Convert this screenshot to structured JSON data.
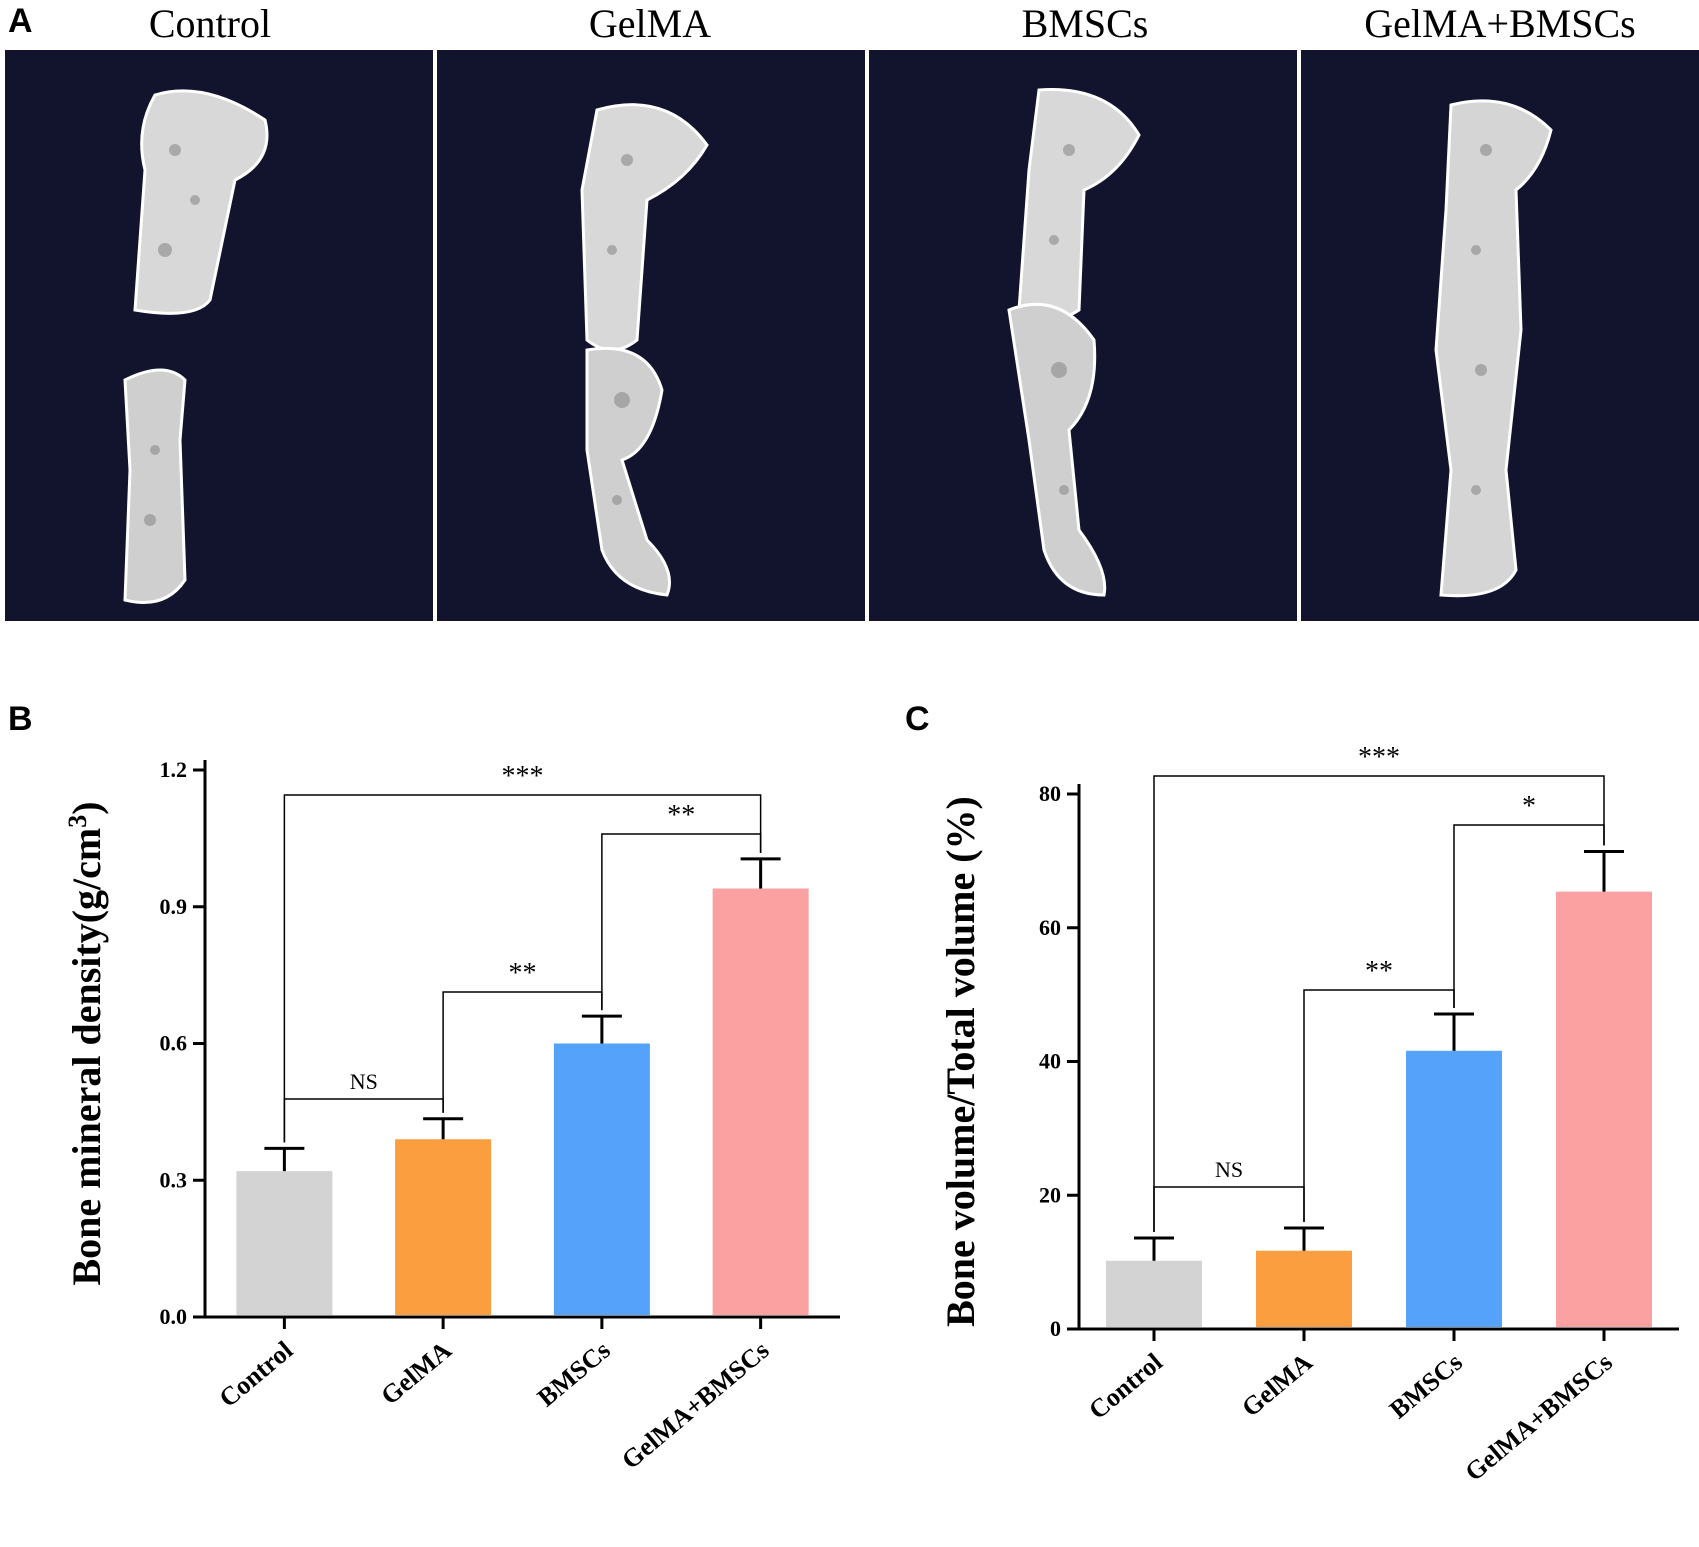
{
  "figure": {
    "panel_a": {
      "letter": "A",
      "columns": [
        "Control",
        "GelMA",
        "BMSCs",
        "GelMA+BMSCs"
      ]
    },
    "panel_b": {
      "letter": "B"
    },
    "panel_c": {
      "letter": "C"
    }
  },
  "colors": {
    "background_panel": "#12142e",
    "bone": "#e6e6e6",
    "control": "#d3d3d3",
    "gelma": "#fa9e3f",
    "bmscs": "#55a2fa",
    "gelma_bmscs": "#fca1a1"
  },
  "chart_data": [
    {
      "type": "bar",
      "title": "",
      "xlabel": "",
      "ylabel": "Bone mineral density(g/cm3)",
      "ylabel_main": "Bone mineral density(g/cm",
      "ylabel_sup": "3",
      "ylabel_end": ")",
      "categories": [
        "Control",
        "GelMA",
        "BMSCs",
        "GelMA+BMSCs"
      ],
      "values": [
        0.32,
        0.39,
        0.6,
        0.94
      ],
      "errors": [
        0.05,
        0.045,
        0.06,
        0.065
      ],
      "ylim": [
        0,
        1.2
      ],
      "yticks": [
        "0.0",
        "0.3",
        "0.6",
        "0.9",
        "1.2"
      ],
      "significance": [
        {
          "from": 0,
          "to": 1,
          "label": "NS"
        },
        {
          "from": 1,
          "to": 2,
          "label": "**"
        },
        {
          "from": 2,
          "to": 3,
          "label": "**"
        },
        {
          "from": 0,
          "to": 3,
          "label": "***"
        }
      ]
    },
    {
      "type": "bar",
      "title": "",
      "xlabel": "",
      "ylabel": "Bone volume/Total volume (%)",
      "categories": [
        "Control",
        "GelMA",
        "BMSCs",
        "GelMA+BMSCs"
      ],
      "values": [
        10.2,
        11.7,
        41.6,
        65.4
      ],
      "errors": [
        3.4,
        3.4,
        5.5,
        6.0
      ],
      "ylim": [
        0,
        80
      ],
      "yticks": [
        "0",
        "20",
        "40",
        "60",
        "80"
      ],
      "significance": [
        {
          "from": 0,
          "to": 1,
          "label": "NS"
        },
        {
          "from": 1,
          "to": 2,
          "label": "**"
        },
        {
          "from": 2,
          "to": 3,
          "label": "*"
        },
        {
          "from": 0,
          "to": 3,
          "label": "***"
        }
      ]
    }
  ]
}
